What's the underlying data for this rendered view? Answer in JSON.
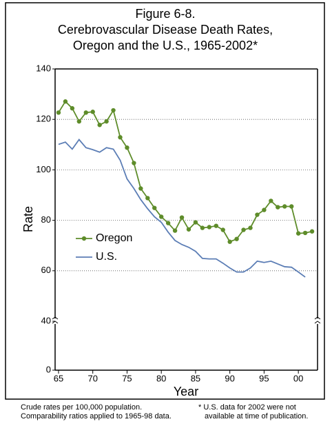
{
  "chart_data": {
    "type": "line",
    "title": [
      "Figure 6-8.",
      "Cerebrovascular Disease Death Rates,",
      "Oregon and the U.S., 1965-2002*"
    ],
    "x_label": "Year",
    "y_label": "Rate",
    "x": [
      1965,
      1966,
      1967,
      1968,
      1969,
      1970,
      1971,
      1972,
      1973,
      1974,
      1975,
      1976,
      1977,
      1978,
      1979,
      1980,
      1981,
      1982,
      1983,
      1984,
      1985,
      1986,
      1987,
      1988,
      1989,
      1990,
      1991,
      1992,
      1993,
      1994,
      1995,
      1996,
      1997,
      1998,
      1999,
      2000,
      2001,
      2002
    ],
    "series": [
      {
        "name": "Oregon",
        "color": "#5e8c2a",
        "marker": true,
        "values": [
          122.7,
          127.1,
          124.4,
          119.2,
          122.7,
          123,
          117.8,
          119.2,
          123.6,
          112.9,
          108.8,
          102.7,
          92.6,
          88.8,
          84.9,
          81.4,
          78.9,
          75.9,
          81.1,
          76.4,
          79.2,
          77,
          77.3,
          77.8,
          76.2,
          71.5,
          72.6,
          76.2,
          77,
          82.2,
          84.1,
          87.7,
          85.2,
          85.5,
          85.5,
          74.8,
          75,
          75.6
        ]
      },
      {
        "name": "U.S.",
        "color": "#5b7db5",
        "marker": false,
        "values": [
          110.1,
          111,
          108.2,
          112,
          108.8,
          108,
          107,
          108.8,
          108.2,
          103.8,
          96.4,
          92.6,
          88.2,
          84.6,
          81.4,
          79.2,
          75.3,
          72,
          70.4,
          69.3,
          67.7,
          64.9,
          64.7,
          64.7,
          63,
          61.1,
          59.5,
          59.5,
          61.1,
          63.8,
          63.3,
          63.8,
          62.7,
          61.6,
          61.4,
          59.5,
          57.5,
          null
        ]
      }
    ],
    "xlim": [
      1964.5,
      2002.8
    ],
    "xticks": [
      {
        "value": 1965,
        "label": "65"
      },
      {
        "value": 1970,
        "label": "70"
      },
      {
        "value": 1975,
        "label": "75"
      },
      {
        "value": 1980,
        "label": "80"
      },
      {
        "value": 1985,
        "label": "85"
      },
      {
        "value": 1990,
        "label": "90"
      },
      {
        "value": 1995,
        "label": "95"
      },
      {
        "value": 2000,
        "label": "00"
      }
    ],
    "ylim": [
      0,
      140
    ],
    "yticks": [
      0,
      40,
      60,
      80,
      100,
      120,
      140
    ],
    "grid": true,
    "notes": [
      "Crude rates per 100,000 population.",
      "Comparability ratios applied to 1965-98 data.",
      "* U.S. data for 2002 were not",
      "available at time of publication."
    ]
  }
}
